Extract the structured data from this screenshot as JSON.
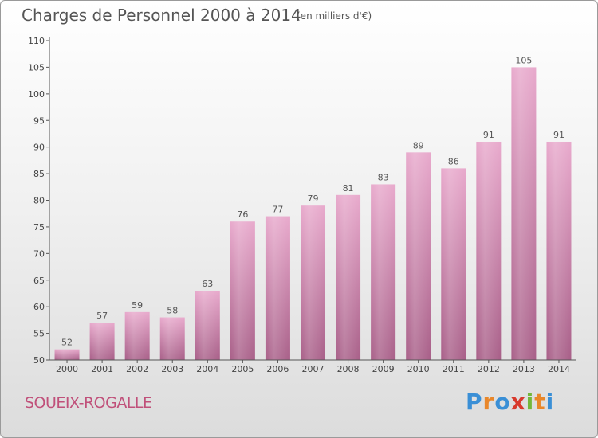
{
  "header": {
    "title": "Charges de Personnel 2000 à 2014",
    "subtitle": "(en milliers d'€)"
  },
  "footer": {
    "commune": "SOUEIX-ROGALLE",
    "logo_text": "Proxiti",
    "logo_colors": [
      "#3a8fd6",
      "#e9872a",
      "#3a8fd6",
      "#d83a2d",
      "#73b73a",
      "#e9872a",
      "#3a8fd6"
    ]
  },
  "colors": {
    "bar_light": "#e8a9cc",
    "bar_dark": "#a85f88",
    "axis": "#555555"
  },
  "chart_data": {
    "type": "bar",
    "categories": [
      "2000",
      "2001",
      "2002",
      "2003",
      "2004",
      "2005",
      "2006",
      "2007",
      "2008",
      "2009",
      "2010",
      "2011",
      "2012",
      "2013",
      "2014"
    ],
    "values": [
      52,
      57,
      59,
      58,
      63,
      76,
      77,
      79,
      81,
      83,
      89,
      86,
      91,
      105,
      91
    ],
    "ylim": [
      50,
      110
    ],
    "yticks": [
      50,
      55,
      60,
      65,
      70,
      75,
      80,
      85,
      90,
      95,
      100,
      105,
      110
    ],
    "grid": false,
    "data_labels": true
  }
}
